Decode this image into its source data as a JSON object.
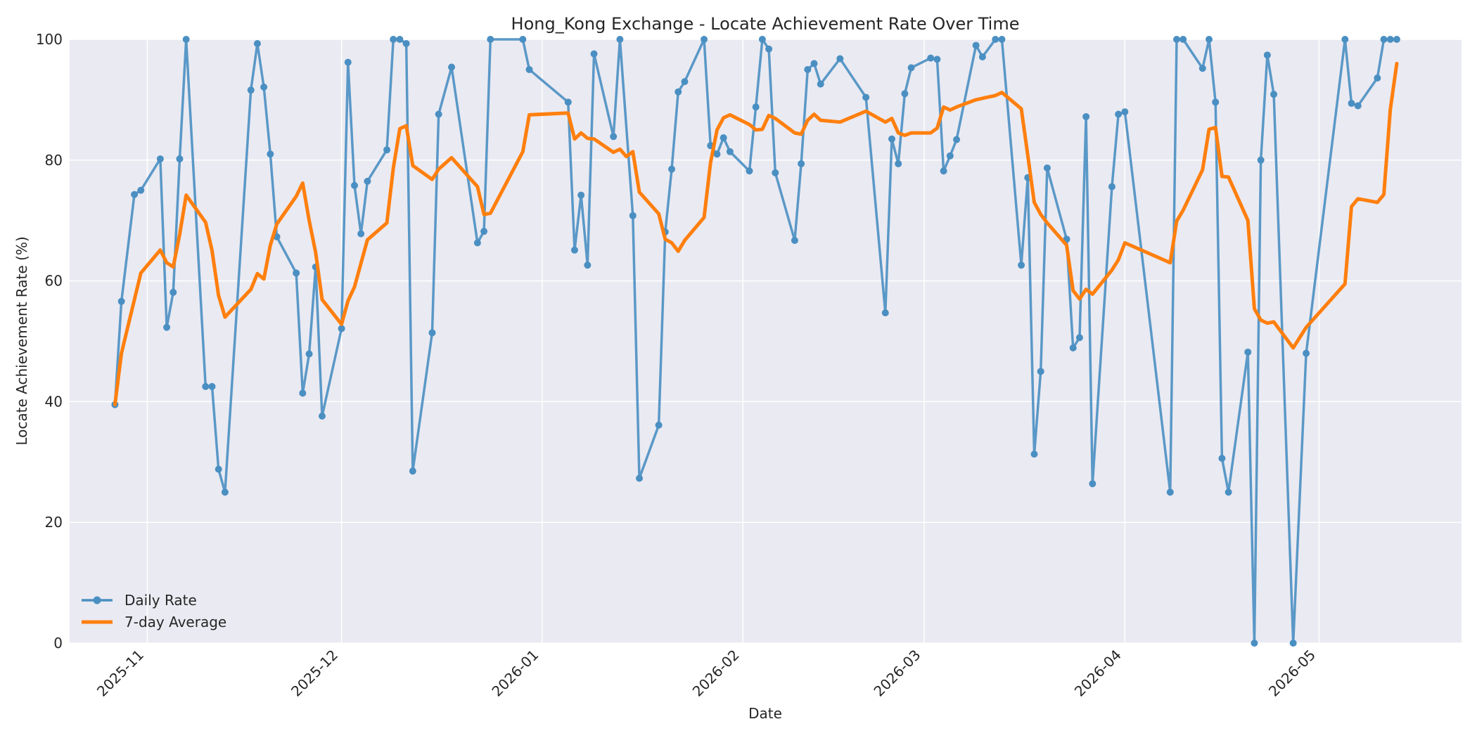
{
  "chart_data": {
    "type": "line",
    "title": "Hong_Kong Exchange - Locate Achievement Rate Over Time",
    "xlabel": "Date",
    "ylabel": "Locate Achievement Rate (%)",
    "x_range": [
      "2025-10-20",
      "2026-05-23"
    ],
    "ylim": [
      0,
      100
    ],
    "y_ticks": [
      0,
      20,
      40,
      60,
      80,
      100
    ],
    "x_ticks": [
      {
        "label": "2025-11",
        "date": "2025-11-01"
      },
      {
        "label": "2025-12",
        "date": "2025-12-01"
      },
      {
        "label": "2026-01",
        "date": "2026-01-01"
      },
      {
        "label": "2026-02",
        "date": "2026-02-01"
      },
      {
        "label": "2026-03",
        "date": "2026-03-01"
      },
      {
        "label": "2026-04",
        "date": "2026-04-01"
      },
      {
        "label": "2026-05",
        "date": "2026-05-01"
      }
    ],
    "grid": true,
    "legend_position": "bottom-left",
    "colors": {
      "plot_background": "#eaeaf2",
      "grid": "#ffffff",
      "daily": "#4a8fc2",
      "average": "#ff7f0e"
    },
    "series": [
      {
        "name": "Daily Rate",
        "marker": "circle",
        "points": [
          [
            "2025-10-27",
            39.5
          ],
          [
            "2025-10-28",
            56.6
          ],
          [
            "2025-10-30",
            74.3
          ],
          [
            "2025-10-31",
            75.0
          ],
          [
            "2025-11-03",
            80.2
          ],
          [
            "2025-11-04",
            52.3
          ],
          [
            "2025-11-05",
            58.1
          ],
          [
            "2025-11-06",
            80.2
          ],
          [
            "2025-11-07",
            100.0
          ],
          [
            "2025-11-10",
            42.5
          ],
          [
            "2025-11-11",
            42.5
          ],
          [
            "2025-11-12",
            28.8
          ],
          [
            "2025-11-13",
            25.0
          ],
          [
            "2025-11-17",
            91.6
          ],
          [
            "2025-11-18",
            99.3
          ],
          [
            "2025-11-19",
            92.1
          ],
          [
            "2025-11-20",
            81.0
          ],
          [
            "2025-11-21",
            67.3
          ],
          [
            "2025-11-24",
            61.3
          ],
          [
            "2025-11-25",
            41.4
          ],
          [
            "2025-11-26",
            47.9
          ],
          [
            "2025-11-27",
            62.3
          ],
          [
            "2025-11-28",
            37.6
          ],
          [
            "2025-12-01",
            52.1
          ],
          [
            "2025-12-02",
            96.2
          ],
          [
            "2025-12-03",
            75.8
          ],
          [
            "2025-12-04",
            67.8
          ],
          [
            "2025-12-05",
            76.5
          ],
          [
            "2025-12-08",
            81.7
          ],
          [
            "2025-12-09",
            100.0
          ],
          [
            "2025-12-10",
            100.0
          ],
          [
            "2025-12-11",
            99.3
          ],
          [
            "2025-12-12",
            28.5
          ],
          [
            "2025-12-15",
            51.4
          ],
          [
            "2025-12-16",
            87.6
          ],
          [
            "2025-12-18",
            95.4
          ],
          [
            "2025-12-22",
            66.3
          ],
          [
            "2025-12-23",
            68.2
          ],
          [
            "2025-12-24",
            100.0
          ],
          [
            "2025-12-29",
            100.0
          ],
          [
            "2025-12-30",
            95.0
          ],
          [
            "2026-01-05",
            89.6
          ],
          [
            "2026-01-06",
            65.1
          ],
          [
            "2026-01-07",
            74.2
          ],
          [
            "2026-01-08",
            62.6
          ],
          [
            "2026-01-09",
            97.6
          ],
          [
            "2026-01-12",
            83.9
          ],
          [
            "2026-01-13",
            100.0
          ],
          [
            "2026-01-15",
            70.8
          ],
          [
            "2026-01-16",
            27.3
          ],
          [
            "2026-01-19",
            36.1
          ],
          [
            "2026-01-20",
            68.1
          ],
          [
            "2026-01-21",
            78.5
          ],
          [
            "2026-01-22",
            91.3
          ],
          [
            "2026-01-23",
            93.0
          ],
          [
            "2026-01-26",
            100.0
          ],
          [
            "2026-01-27",
            82.4
          ],
          [
            "2026-01-28",
            81.0
          ],
          [
            "2026-01-29",
            83.7
          ],
          [
            "2026-01-30",
            81.4
          ],
          [
            "2026-02-02",
            78.2
          ],
          [
            "2026-02-03",
            88.8
          ],
          [
            "2026-02-04",
            100.0
          ],
          [
            "2026-02-05",
            98.4
          ],
          [
            "2026-02-06",
            77.9
          ],
          [
            "2026-02-09",
            66.7
          ],
          [
            "2026-02-10",
            79.4
          ],
          [
            "2026-02-11",
            95.0
          ],
          [
            "2026-02-12",
            96.0
          ],
          [
            "2026-02-13",
            92.6
          ],
          [
            "2026-02-16",
            96.8
          ],
          [
            "2026-02-20",
            90.4
          ],
          [
            "2026-02-23",
            54.7
          ],
          [
            "2026-02-24",
            83.5
          ],
          [
            "2026-02-25",
            79.4
          ],
          [
            "2026-02-26",
            91.0
          ],
          [
            "2026-02-27",
            95.3
          ],
          [
            "2026-03-02",
            96.9
          ],
          [
            "2026-03-03",
            96.7
          ],
          [
            "2026-03-04",
            78.2
          ],
          [
            "2026-03-05",
            80.7
          ],
          [
            "2026-03-06",
            83.4
          ],
          [
            "2026-03-09",
            99.0
          ],
          [
            "2026-03-10",
            97.1
          ],
          [
            "2026-03-12",
            100.0
          ],
          [
            "2026-03-13",
            100.0
          ],
          [
            "2026-03-16",
            62.6
          ],
          [
            "2026-03-17",
            77.1
          ],
          [
            "2026-03-18",
            31.3
          ],
          [
            "2026-03-19",
            45.0
          ],
          [
            "2026-03-20",
            78.7
          ],
          [
            "2026-03-23",
            66.9
          ],
          [
            "2026-03-24",
            48.9
          ],
          [
            "2026-03-25",
            50.6
          ],
          [
            "2026-03-26",
            87.2
          ],
          [
            "2026-03-27",
            26.4
          ],
          [
            "2026-03-30",
            75.6
          ],
          [
            "2026-03-31",
            87.6
          ],
          [
            "2026-04-01",
            88.0
          ],
          [
            "2026-04-08",
            25.0
          ],
          [
            "2026-04-09",
            100.0
          ],
          [
            "2026-04-10",
            100.0
          ],
          [
            "2026-04-13",
            95.2
          ],
          [
            "2026-04-14",
            100.0
          ],
          [
            "2026-04-15",
            89.6
          ],
          [
            "2026-04-16",
            30.6
          ],
          [
            "2026-04-17",
            25.0
          ],
          [
            "2026-04-20",
            48.2
          ],
          [
            "2026-04-21",
            0.0
          ],
          [
            "2026-04-22",
            80.0
          ],
          [
            "2026-04-23",
            97.4
          ],
          [
            "2026-04-24",
            90.9
          ],
          [
            "2026-04-27",
            0.0
          ],
          [
            "2026-04-29",
            48.0
          ],
          [
            "2026-05-05",
            100.0
          ],
          [
            "2026-05-06",
            89.4
          ],
          [
            "2026-05-07",
            89.0
          ],
          [
            "2026-05-10",
            93.6
          ],
          [
            "2026-05-11",
            100.0
          ],
          [
            "2026-05-12",
            100.0
          ],
          [
            "2026-05-13",
            100.0
          ]
        ]
      },
      {
        "name": "7-day Average",
        "marker": "none",
        "points": [
          [
            "2025-10-27",
            39.5
          ],
          [
            "2025-10-28",
            48.0
          ],
          [
            "2025-10-31",
            61.3
          ],
          [
            "2025-11-03",
            65.1
          ],
          [
            "2025-11-04",
            63.0
          ],
          [
            "2025-11-05",
            62.3
          ],
          [
            "2025-11-06",
            67.7
          ],
          [
            "2025-11-07",
            74.2
          ],
          [
            "2025-11-10",
            69.7
          ],
          [
            "2025-11-11",
            65.0
          ],
          [
            "2025-11-12",
            57.6
          ],
          [
            "2025-11-13",
            54.0
          ],
          [
            "2025-11-17",
            58.6
          ],
          [
            "2025-11-18",
            61.2
          ],
          [
            "2025-11-19",
            60.3
          ],
          [
            "2025-11-20",
            65.9
          ],
          [
            "2025-11-21",
            69.4
          ],
          [
            "2025-11-24",
            74.0
          ],
          [
            "2025-11-25",
            76.2
          ],
          [
            "2025-11-26",
            70.0
          ],
          [
            "2025-11-27",
            64.7
          ],
          [
            "2025-11-28",
            56.9
          ],
          [
            "2025-12-01",
            52.8
          ],
          [
            "2025-12-02",
            56.7
          ],
          [
            "2025-12-03",
            59.0
          ],
          [
            "2025-12-04",
            62.9
          ],
          [
            "2025-12-05",
            66.8
          ],
          [
            "2025-12-08",
            69.6
          ],
          [
            "2025-12-09",
            78.7
          ],
          [
            "2025-12-10",
            85.2
          ],
          [
            "2025-12-11",
            85.7
          ],
          [
            "2025-12-12",
            79.1
          ],
          [
            "2025-12-15",
            76.8
          ],
          [
            "2025-12-16",
            78.5
          ],
          [
            "2025-12-18",
            80.4
          ],
          [
            "2025-12-22",
            75.6
          ],
          [
            "2025-12-23",
            71.0
          ],
          [
            "2025-12-24",
            71.2
          ],
          [
            "2025-12-29",
            81.4
          ],
          [
            "2025-12-30",
            87.5
          ],
          [
            "2026-01-05",
            87.8
          ],
          [
            "2026-01-06",
            83.5
          ],
          [
            "2026-01-07",
            84.5
          ],
          [
            "2026-01-08",
            83.6
          ],
          [
            "2026-01-09",
            83.5
          ],
          [
            "2026-01-12",
            81.3
          ],
          [
            "2026-01-13",
            81.8
          ],
          [
            "2026-01-14",
            80.6
          ],
          [
            "2026-01-15",
            81.4
          ],
          [
            "2026-01-16",
            74.7
          ],
          [
            "2026-01-19",
            71.1
          ],
          [
            "2026-01-20",
            66.9
          ],
          [
            "2026-01-21",
            66.3
          ],
          [
            "2026-01-22",
            64.9
          ],
          [
            "2026-01-23",
            66.7
          ],
          [
            "2026-01-26",
            70.5
          ],
          [
            "2026-01-27",
            79.6
          ],
          [
            "2026-01-28",
            85.0
          ],
          [
            "2026-01-29",
            87.0
          ],
          [
            "2026-01-30",
            87.5
          ],
          [
            "2026-02-02",
            85.9
          ],
          [
            "2026-02-03",
            85.0
          ],
          [
            "2026-02-04",
            85.1
          ],
          [
            "2026-02-05",
            87.4
          ],
          [
            "2026-02-06",
            86.9
          ],
          [
            "2026-02-09",
            84.5
          ],
          [
            "2026-02-10",
            84.3
          ],
          [
            "2026-02-11",
            86.6
          ],
          [
            "2026-02-12",
            87.6
          ],
          [
            "2026-02-13",
            86.6
          ],
          [
            "2026-02-16",
            86.3
          ],
          [
            "2026-02-20",
            88.1
          ],
          [
            "2026-02-23",
            86.3
          ],
          [
            "2026-02-24",
            86.9
          ],
          [
            "2026-02-25",
            84.5
          ],
          [
            "2026-02-26",
            84.1
          ],
          [
            "2026-02-27",
            84.5
          ],
          [
            "2026-03-02",
            84.5
          ],
          [
            "2026-03-03",
            85.3
          ],
          [
            "2026-03-04",
            88.8
          ],
          [
            "2026-03-05",
            88.3
          ],
          [
            "2026-03-06",
            88.8
          ],
          [
            "2026-03-09",
            90.0
          ],
          [
            "2026-03-12",
            90.7
          ],
          [
            "2026-03-13",
            91.2
          ],
          [
            "2026-03-16",
            88.5
          ],
          [
            "2026-03-17",
            80.8
          ],
          [
            "2026-03-18",
            73.0
          ],
          [
            "2026-03-19",
            71.0
          ],
          [
            "2026-03-20",
            69.6
          ],
          [
            "2026-03-23",
            65.9
          ],
          [
            "2026-03-24",
            58.4
          ],
          [
            "2026-03-25",
            57.0
          ],
          [
            "2026-03-26",
            58.6
          ],
          [
            "2026-03-27",
            57.8
          ],
          [
            "2026-03-30",
            61.8
          ],
          [
            "2026-03-31",
            63.5
          ],
          [
            "2026-04-01",
            66.3
          ],
          [
            "2026-04-08",
            63.0
          ],
          [
            "2026-04-09",
            69.9
          ],
          [
            "2026-04-10",
            71.7
          ],
          [
            "2026-04-13",
            78.4
          ],
          [
            "2026-04-14",
            85.1
          ],
          [
            "2026-04-15",
            85.4
          ],
          [
            "2026-04-16",
            77.3
          ],
          [
            "2026-04-17",
            77.2
          ],
          [
            "2026-04-20",
            70.0
          ],
          [
            "2026-04-21",
            55.4
          ],
          [
            "2026-04-22",
            53.5
          ],
          [
            "2026-04-23",
            53.0
          ],
          [
            "2026-04-24",
            53.2
          ],
          [
            "2026-04-27",
            48.9
          ],
          [
            "2026-04-29",
            52.3
          ],
          [
            "2026-05-05",
            59.5
          ],
          [
            "2026-05-06",
            72.3
          ],
          [
            "2026-05-07",
            73.6
          ],
          [
            "2026-05-10",
            73.0
          ],
          [
            "2026-05-11",
            74.3
          ],
          [
            "2026-05-12",
            88.4
          ],
          [
            "2026-05-13",
            96.0
          ]
        ]
      }
    ]
  }
}
